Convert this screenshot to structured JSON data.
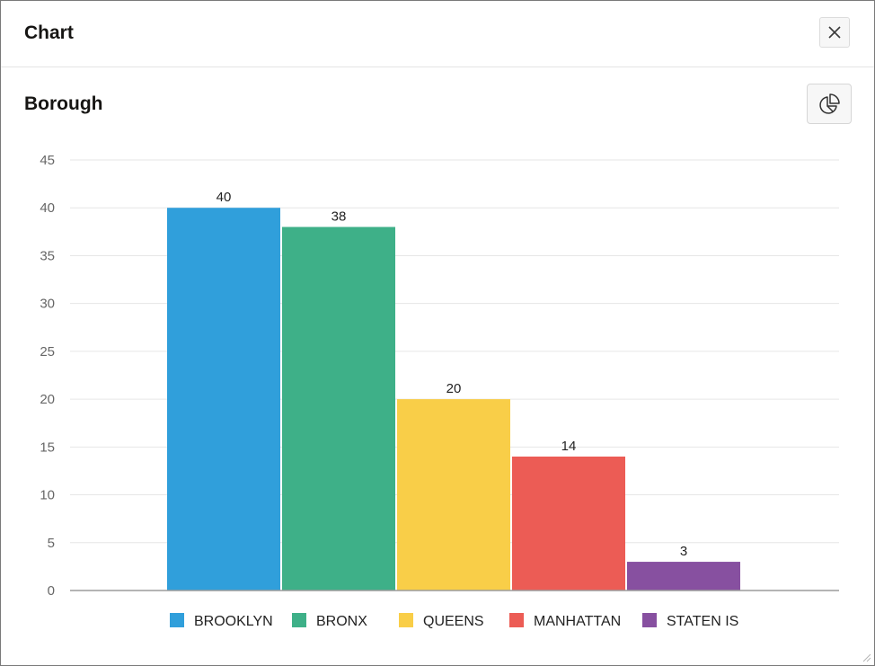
{
  "dialog": {
    "title": "Chart",
    "close_icon": "close-icon"
  },
  "region": {
    "title": "Borough",
    "chart_type_icon": "pie-chart-icon"
  },
  "chart_data": {
    "type": "bar",
    "categories": [
      "BROOKLYN",
      "BRONX",
      "QUEENS",
      "MANHATTAN",
      "STATEN IS"
    ],
    "values": [
      40,
      38,
      20,
      14,
      3
    ],
    "colors": [
      "#309fdb",
      "#3eb088",
      "#f9ce48",
      "#ec5c55",
      "#8750a0"
    ],
    "ylim": [
      0,
      45
    ],
    "yticks": [
      "0",
      "5",
      "10",
      "15",
      "20",
      "25",
      "30",
      "35",
      "40",
      "45"
    ],
    "data_labels": [
      "40",
      "38",
      "20",
      "14",
      "3"
    ],
    "grid": true,
    "legend": "bottom"
  }
}
